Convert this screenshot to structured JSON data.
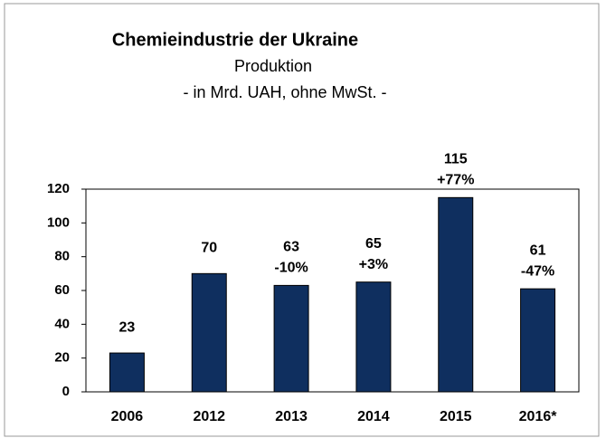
{
  "chart_data": {
    "type": "bar",
    "title": "Chemieindustrie der Ukraine",
    "subtitle": [
      "Produktion",
      "- in Mrd. UAH, ohne MwSt. -"
    ],
    "categories": [
      "2006",
      "2012",
      "2013",
      "2014",
      "2015",
      "2016*"
    ],
    "values": [
      23,
      70,
      63,
      65,
      115,
      61
    ],
    "annotations": [
      null,
      null,
      "-10%",
      "+3%",
      "+77%",
      "-47%"
    ],
    "color": "#0f2f5f",
    "ylim": [
      0,
      120
    ],
    "yticks": [
      0,
      20,
      40,
      60,
      80,
      100,
      120
    ],
    "grid": false
  }
}
